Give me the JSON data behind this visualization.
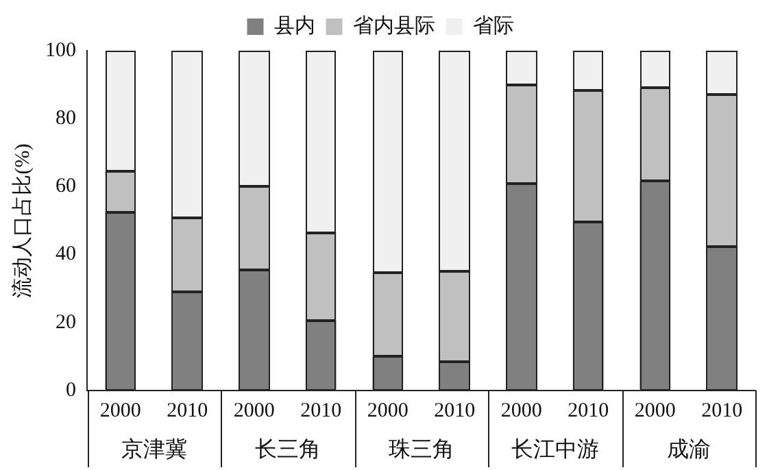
{
  "chart_data": {
    "type": "bar",
    "stacked": true,
    "ylabel": "流动人口占比(%)",
    "categories": [
      "2000",
      "2010",
      "2000",
      "2010",
      "2000",
      "2010",
      "2000",
      "2010",
      "2000",
      "2010"
    ],
    "annotations": [
      "京津冀",
      "长三角",
      "珠三角",
      "长江中游",
      "成渝"
    ],
    "series": [
      {
        "name": "县内",
        "color": "#808080",
        "values": [
          52.5,
          29,
          35.5,
          20.5,
          10,
          8.5,
          61,
          49.5,
          61.5,
          42.5
        ]
      },
      {
        "name": "省内县际",
        "color": "#c0c0c0",
        "values": [
          12,
          22,
          24.5,
          26,
          24.5,
          26.5,
          29,
          39,
          27.5,
          44.5
        ]
      },
      {
        "name": "省际",
        "color": "#f0f0f0",
        "values": [
          35.5,
          49,
          40,
          53.5,
          65.5,
          65,
          10,
          11.5,
          11,
          13
        ]
      }
    ],
    "ylim": [
      0,
      100
    ],
    "yticks": [
      0,
      20,
      40,
      60,
      80,
      100
    ],
    "grid": false,
    "legend": "top"
  }
}
